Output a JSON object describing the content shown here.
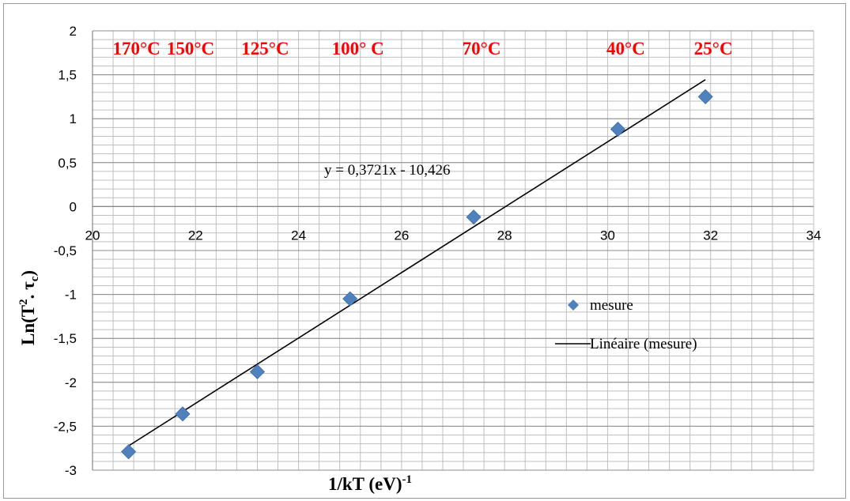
{
  "chart_data": {
    "type": "scatter",
    "title": "",
    "xlabel": {
      "base": "1/kT (eV)",
      "sup": "-1"
    },
    "ylabel": {
      "base": "Ln(T",
      "sup": "2",
      "mid": ". τ",
      "sub": "c",
      "end": ")"
    },
    "xlim": [
      20,
      34
    ],
    "ylim": [
      -3,
      2
    ],
    "x_ticks": [
      20,
      22,
      24,
      26,
      28,
      30,
      32,
      34
    ],
    "y_ticks": [
      -3,
      -2.5,
      -2,
      -1.5,
      -1,
      -0.5,
      0,
      0.5,
      1,
      1.5,
      2
    ],
    "x_tick_labels": [
      "20",
      "22",
      "24",
      "26",
      "28",
      "30",
      "32",
      "34"
    ],
    "y_tick_labels": [
      "-3",
      "-2,5",
      "-2",
      "-1,5",
      "-1",
      "-0,5",
      "0",
      "0,5",
      "1",
      "1,5",
      "2"
    ],
    "x_minor_step": 0.4,
    "y_minor_step": 0.1,
    "grid": true,
    "series": [
      {
        "name": "mesure",
        "marker": "diamond",
        "color": "#4f81bd",
        "points": [
          {
            "x": 20.7,
            "y": -2.79
          },
          {
            "x": 21.75,
            "y": -2.36
          },
          {
            "x": 23.2,
            "y": -1.88
          },
          {
            "x": 25.0,
            "y": -1.05
          },
          {
            "x": 27.4,
            "y": -0.12
          },
          {
            "x": 30.2,
            "y": 0.88
          },
          {
            "x": 31.9,
            "y": 1.25
          }
        ]
      }
    ],
    "trendline": {
      "name": "Linéaire (mesure)",
      "color": "#000000",
      "slope": 0.3721,
      "intercept": -10.426,
      "x_range": [
        20.7,
        31.9
      ],
      "equation_label": "y = 0,3721x - 10,426"
    },
    "temperature_labels": [
      {
        "text": "170°C",
        "x": 20.7
      },
      {
        "text": "150°C",
        "x": 21.75
      },
      {
        "text": "125°C",
        "x": 23.2
      },
      {
        "text": "100° C",
        "x": 25.0
      },
      {
        "text": "70°C",
        "x": 27.4
      },
      {
        "text": "40°C",
        "x": 30.2
      },
      {
        "text": "25°C",
        "x": 31.9
      }
    ],
    "temperature_label_color": "#ff0000",
    "legend_position": "right"
  }
}
